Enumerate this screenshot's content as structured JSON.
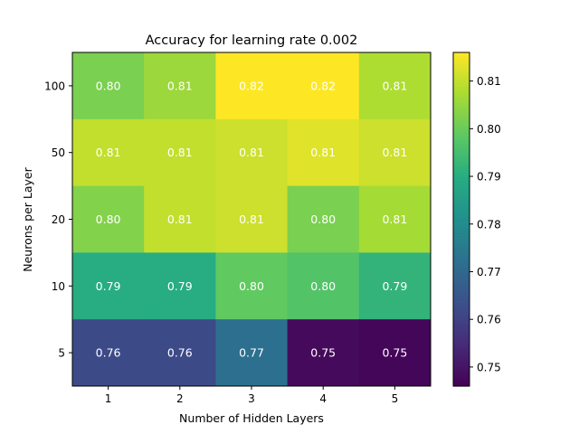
{
  "chart_data": {
    "type": "heatmap",
    "title": "Accuracy for learning rate 0.002",
    "xlabel": "Number of Hidden Layers",
    "ylabel": "Neurons per Layer",
    "x_categories": [
      "1",
      "2",
      "3",
      "4",
      "5"
    ],
    "y_categories": [
      "100",
      "50",
      "20",
      "10",
      "5"
    ],
    "values": [
      [
        0.802,
        0.806,
        0.816,
        0.816,
        0.808
      ],
      [
        0.81,
        0.81,
        0.811,
        0.813,
        0.811
      ],
      [
        0.803,
        0.81,
        0.811,
        0.802,
        0.807
      ],
      [
        0.79,
        0.79,
        0.799,
        0.797,
        0.792
      ],
      [
        0.762,
        0.762,
        0.772,
        0.748,
        0.747
      ]
    ],
    "labels": [
      [
        "0.80",
        "0.81",
        "0.82",
        "0.82",
        "0.81"
      ],
      [
        "0.81",
        "0.81",
        "0.81",
        "0.81",
        "0.81"
      ],
      [
        "0.80",
        "0.81",
        "0.81",
        "0.80",
        "0.81"
      ],
      [
        "0.79",
        "0.79",
        "0.80",
        "0.80",
        "0.79"
      ],
      [
        "0.76",
        "0.76",
        "0.77",
        "0.75",
        "0.75"
      ]
    ],
    "colormap": "viridis",
    "colorbar_range": [
      0.746,
      0.816
    ],
    "colorbar_ticks": [
      "0.75",
      "0.76",
      "0.77",
      "0.78",
      "0.79",
      "0.80",
      "0.81"
    ],
    "colorbar_tick_values": [
      0.75,
      0.76,
      0.77,
      0.78,
      0.79,
      0.8,
      0.81
    ],
    "grid": false,
    "label_color": "#ffffff"
  }
}
